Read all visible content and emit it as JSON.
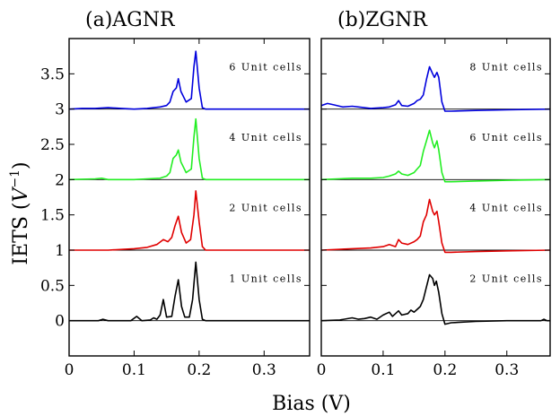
{
  "chart_data": {
    "type": "line",
    "ylabel": "IETS (V^-1)",
    "ylabel_parts": {
      "main": "IETS (",
      "var": "V",
      "sup": "−1",
      "close": ")"
    },
    "xlabel": "Bias (V)",
    "xlim": [
      0,
      0.37
    ],
    "ylim": [
      -0.5,
      4.0
    ],
    "x_ticks": [
      0,
      0.1,
      0.2,
      0.3
    ],
    "x_tick_labels": [
      "0",
      "0.1",
      "0.2",
      "0.3"
    ],
    "y_ticks": [
      0,
      0.5,
      1,
      1.5,
      2,
      2.5,
      3,
      3.5
    ],
    "y_tick_labels": [
      "0",
      "0.5",
      "1",
      "1.5",
      "2",
      "2.5",
      "3",
      "3.5"
    ],
    "grid": false,
    "colors": {
      "black": "#000000",
      "red": "#e00000",
      "green": "#22ee22",
      "blue": "#0000dd"
    },
    "panels": [
      {
        "title": "(a)AGNR",
        "series": [
          {
            "name": "1 Unit cells",
            "offset": 0,
            "color": "#000000",
            "points": [
              [
                0,
                0
              ],
              [
                0.045,
                0
              ],
              [
                0.052,
                0.02
              ],
              [
                0.06,
                0
              ],
              [
                0.095,
                0
              ],
              [
                0.104,
                0.06
              ],
              [
                0.112,
                0
              ],
              [
                0.125,
                0.01
              ],
              [
                0.13,
                0.04
              ],
              [
                0.135,
                0.02
              ],
              [
                0.14,
                0.08
              ],
              [
                0.145,
                0.3
              ],
              [
                0.15,
                0.05
              ],
              [
                0.158,
                0.06
              ],
              [
                0.163,
                0.35
              ],
              [
                0.168,
                0.58
              ],
              [
                0.173,
                0.2
              ],
              [
                0.178,
                0.05
              ],
              [
                0.185,
                0.05
              ],
              [
                0.19,
                0.3
              ],
              [
                0.195,
                0.83
              ],
              [
                0.2,
                0.3
              ],
              [
                0.205,
                0.02
              ],
              [
                0.21,
                0
              ],
              [
                0.37,
                0
              ]
            ]
          },
          {
            "name": "2 Unit cells",
            "offset": 1,
            "color": "#e00000",
            "points": [
              [
                0,
                1
              ],
              [
                0.06,
                1
              ],
              [
                0.1,
                1.02
              ],
              [
                0.12,
                1.04
              ],
              [
                0.135,
                1.08
              ],
              [
                0.145,
                1.15
              ],
              [
                0.152,
                1.12
              ],
              [
                0.158,
                1.18
              ],
              [
                0.163,
                1.35
              ],
              [
                0.168,
                1.48
              ],
              [
                0.173,
                1.25
              ],
              [
                0.18,
                1.1
              ],
              [
                0.187,
                1.15
              ],
              [
                0.192,
                1.5
              ],
              [
                0.195,
                1.84
              ],
              [
                0.2,
                1.4
              ],
              [
                0.205,
                1.05
              ],
              [
                0.21,
                1
              ],
              [
                0.37,
                1
              ]
            ]
          },
          {
            "name": "4 Unit cells",
            "offset": 2,
            "color": "#22ee22",
            "points": [
              [
                0,
                2
              ],
              [
                0.04,
                2.01
              ],
              [
                0.05,
                2.02
              ],
              [
                0.06,
                2
              ],
              [
                0.1,
                2
              ],
              [
                0.12,
                2.01
              ],
              [
                0.14,
                2.02
              ],
              [
                0.15,
                2.05
              ],
              [
                0.155,
                2.1
              ],
              [
                0.16,
                2.3
              ],
              [
                0.165,
                2.35
              ],
              [
                0.168,
                2.42
              ],
              [
                0.172,
                2.25
              ],
              [
                0.18,
                2.1
              ],
              [
                0.188,
                2.15
              ],
              [
                0.192,
                2.6
              ],
              [
                0.195,
                2.86
              ],
              [
                0.2,
                2.3
              ],
              [
                0.205,
                2.02
              ],
              [
                0.21,
                2
              ],
              [
                0.37,
                2
              ]
            ]
          },
          {
            "name": "6 Unit cells",
            "offset": 3,
            "color": "#0000dd",
            "points": [
              [
                0,
                3
              ],
              [
                0.02,
                3.01
              ],
              [
                0.04,
                3.01
              ],
              [
                0.06,
                3.02
              ],
              [
                0.08,
                3.01
              ],
              [
                0.1,
                3
              ],
              [
                0.12,
                3.01
              ],
              [
                0.14,
                3.03
              ],
              [
                0.15,
                3.05
              ],
              [
                0.155,
                3.1
              ],
              [
                0.16,
                3.25
              ],
              [
                0.165,
                3.3
              ],
              [
                0.168,
                3.43
              ],
              [
                0.172,
                3.25
              ],
              [
                0.18,
                3.1
              ],
              [
                0.188,
                3.15
              ],
              [
                0.192,
                3.6
              ],
              [
                0.195,
                3.82
              ],
              [
                0.2,
                3.3
              ],
              [
                0.205,
                3.02
              ],
              [
                0.21,
                3
              ],
              [
                0.37,
                3
              ]
            ]
          }
        ]
      },
      {
        "title": "(b)ZGNR",
        "series": [
          {
            "name": "2 Unit cells",
            "offset": 0,
            "color": "#000000",
            "points": [
              [
                0,
                0
              ],
              [
                0.03,
                0.01
              ],
              [
                0.05,
                0.04
              ],
              [
                0.06,
                0.02
              ],
              [
                0.07,
                0.03
              ],
              [
                0.08,
                0.05
              ],
              [
                0.09,
                0.02
              ],
              [
                0.1,
                0.08
              ],
              [
                0.11,
                0.12
              ],
              [
                0.115,
                0.06
              ],
              [
                0.12,
                0.1
              ],
              [
                0.125,
                0.14
              ],
              [
                0.13,
                0.08
              ],
              [
                0.14,
                0.1
              ],
              [
                0.145,
                0.15
              ],
              [
                0.15,
                0.12
              ],
              [
                0.155,
                0.16
              ],
              [
                0.16,
                0.2
              ],
              [
                0.165,
                0.3
              ],
              [
                0.17,
                0.48
              ],
              [
                0.175,
                0.65
              ],
              [
                0.18,
                0.6
              ],
              [
                0.183,
                0.5
              ],
              [
                0.186,
                0.56
              ],
              [
                0.19,
                0.4
              ],
              [
                0.195,
                0.1
              ],
              [
                0.2,
                -0.05
              ],
              [
                0.21,
                -0.03
              ],
              [
                0.25,
                -0.01
              ],
              [
                0.3,
                0
              ],
              [
                0.355,
                0
              ],
              [
                0.36,
                0.02
              ],
              [
                0.365,
                0
              ],
              [
                0.37,
                0
              ]
            ]
          },
          {
            "name": "4 Unit cells",
            "offset": 1,
            "color": "#e00000",
            "points": [
              [
                0,
                1
              ],
              [
                0.05,
                1.02
              ],
              [
                0.08,
                1.03
              ],
              [
                0.1,
                1.05
              ],
              [
                0.11,
                1.08
              ],
              [
                0.12,
                1.05
              ],
              [
                0.125,
                1.15
              ],
              [
                0.13,
                1.1
              ],
              [
                0.14,
                1.08
              ],
              [
                0.15,
                1.12
              ],
              [
                0.155,
                1.15
              ],
              [
                0.16,
                1.2
              ],
              [
                0.165,
                1.4
              ],
              [
                0.17,
                1.5
              ],
              [
                0.175,
                1.72
              ],
              [
                0.18,
                1.55
              ],
              [
                0.183,
                1.5
              ],
              [
                0.187,
                1.55
              ],
              [
                0.19,
                1.4
              ],
              [
                0.195,
                1.1
              ],
              [
                0.2,
                0.97
              ],
              [
                0.21,
                0.97
              ],
              [
                0.25,
                0.98
              ],
              [
                0.3,
                0.99
              ],
              [
                0.37,
                1
              ]
            ]
          },
          {
            "name": "6 Unit cells",
            "offset": 2,
            "color": "#22ee22",
            "points": [
              [
                0,
                2
              ],
              [
                0.05,
                2.02
              ],
              [
                0.08,
                2.02
              ],
              [
                0.1,
                2.03
              ],
              [
                0.11,
                2.05
              ],
              [
                0.12,
                2.08
              ],
              [
                0.125,
                2.12
              ],
              [
                0.13,
                2.08
              ],
              [
                0.14,
                2.06
              ],
              [
                0.15,
                2.1
              ],
              [
                0.155,
                2.15
              ],
              [
                0.16,
                2.2
              ],
              [
                0.165,
                2.4
              ],
              [
                0.17,
                2.55
              ],
              [
                0.175,
                2.7
              ],
              [
                0.18,
                2.52
              ],
              [
                0.183,
                2.45
              ],
              [
                0.187,
                2.55
              ],
              [
                0.19,
                2.42
              ],
              [
                0.195,
                2.1
              ],
              [
                0.2,
                1.97
              ],
              [
                0.21,
                1.97
              ],
              [
                0.25,
                1.98
              ],
              [
                0.3,
                1.99
              ],
              [
                0.37,
                2
              ]
            ]
          },
          {
            "name": "8 Unit cells",
            "offset": 3,
            "color": "#0000dd",
            "points": [
              [
                0,
                3.05
              ],
              [
                0.01,
                3.08
              ],
              [
                0.02,
                3.06
              ],
              [
                0.035,
                3.03
              ],
              [
                0.05,
                3.04
              ],
              [
                0.06,
                3.03
              ],
              [
                0.08,
                3.01
              ],
              [
                0.1,
                3.02
              ],
              [
                0.11,
                3.03
              ],
              [
                0.12,
                3.06
              ],
              [
                0.125,
                3.12
              ],
              [
                0.13,
                3.05
              ],
              [
                0.14,
                3.04
              ],
              [
                0.15,
                3.08
              ],
              [
                0.155,
                3.12
              ],
              [
                0.16,
                3.14
              ],
              [
                0.165,
                3.2
              ],
              [
                0.17,
                3.42
              ],
              [
                0.175,
                3.6
              ],
              [
                0.18,
                3.5
              ],
              [
                0.183,
                3.45
              ],
              [
                0.187,
                3.52
              ],
              [
                0.19,
                3.45
              ],
              [
                0.195,
                3.1
              ],
              [
                0.2,
                2.97
              ],
              [
                0.21,
                2.97
              ],
              [
                0.25,
                2.98
              ],
              [
                0.3,
                2.99
              ],
              [
                0.37,
                3
              ]
            ]
          }
        ]
      }
    ]
  }
}
